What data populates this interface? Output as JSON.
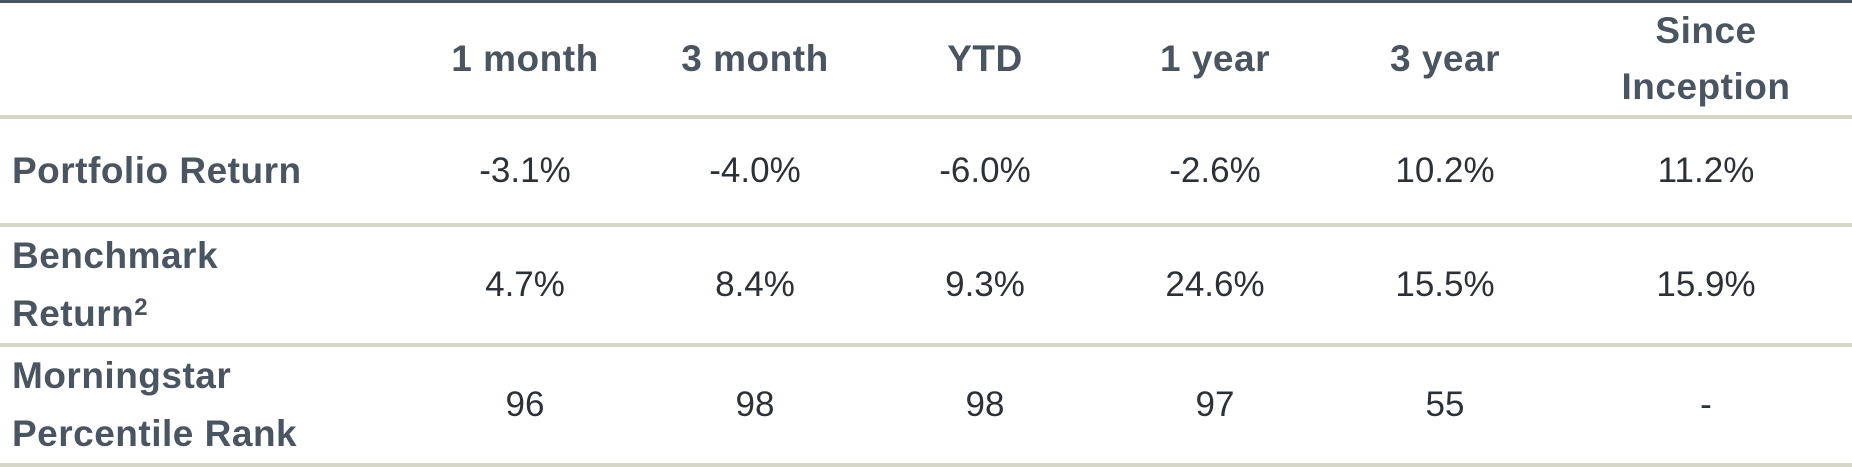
{
  "table": {
    "columns": [
      "",
      "1 month",
      "3 month",
      "YTD",
      "1 year",
      "3 year",
      "Since Inception"
    ],
    "rows": [
      {
        "label": "Portfolio Return",
        "label_sup": "",
        "values": [
          "-3.1%",
          "-4.0%",
          "-6.0%",
          "-2.6%",
          "10.2%",
          "11.2%"
        ]
      },
      {
        "label": "Benchmark Return",
        "label_sup": "2",
        "values": [
          "4.7%",
          "8.4%",
          "9.3%",
          "24.6%",
          "15.5%",
          "15.9%"
        ]
      },
      {
        "label": "Morningstar Percentile Rank",
        "label_sup": "",
        "values": [
          "96",
          "98",
          "98",
          "97",
          "55",
          "-"
        ]
      }
    ]
  },
  "colors": {
    "header_text": "#4a5561",
    "cell_text": "#2c3038",
    "rule": "#d6d7c9",
    "top_rule": "#4a5561"
  }
}
